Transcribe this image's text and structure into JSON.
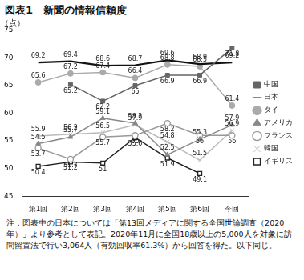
{
  "chart_data": {
    "type": "line",
    "title": "図表1　新聞の情報信頼度",
    "y_label": "（点）",
    "note": "注：図表中の日本については「第13回メディアに関する全国世論調査（2020年）」より参考として表記。2020年11月に全国18歳以上の5,000人を対象に訪問留置法で行い3,064人（有効回収率61.3%）から回答を得た。以下同じ。",
    "categories": [
      "第1回",
      "第2回",
      "第3回",
      "第4回",
      "第5回",
      "第6回",
      "今回"
    ],
    "series": [
      {
        "name": "中国",
        "color": "#666666",
        "marker": "square",
        "values": [
          null,
          65.2,
          62.2,
          65.0,
          66.9,
          66.9,
          71.8
        ]
      },
      {
        "name": "日本",
        "color": "#111111",
        "marker": "none",
        "values": [
          69.2,
          69.4,
          68.6,
          68.7,
          69.6,
          68.9,
          69.2
        ]
      },
      {
        "name": "タイ",
        "color": "#aaaaaa",
        "marker": "circle",
        "values": [
          65.6,
          67.2,
          67.4,
          66.4,
          68.8,
          68.5,
          61.4
        ]
      },
      {
        "name": "アメリカ",
        "color": "#888888",
        "marker": "triangle",
        "values": [
          54.5,
          55.7,
          59.1,
          58.2,
          52.5,
          55.3,
          57.9
        ]
      },
      {
        "name": "フランス",
        "color": "#999999",
        "marker": "open_circle",
        "values": [
          53.7,
          51.7,
          55.7,
          56.0,
          58.2,
          56.0,
          56.0
        ]
      },
      {
        "name": "韓国",
        "color": "#bbbbbb",
        "marker": "cross",
        "values": [
          55.9,
          56.2,
          56.5,
          57.9,
          54.8,
          51.5,
          56.9
        ]
      },
      {
        "name": "イギリス",
        "color": "#222222",
        "marker": "open_square",
        "values": [
          50.4,
          51.2,
          51.0,
          55.6,
          51.9,
          49.1,
          null
        ]
      }
    ],
    "ylim": [
      45,
      75
    ],
    "yticks": [
      45,
      50,
      55,
      60,
      65,
      70,
      75
    ],
    "grid": false,
    "legend": "right",
    "data_labels": true
  }
}
